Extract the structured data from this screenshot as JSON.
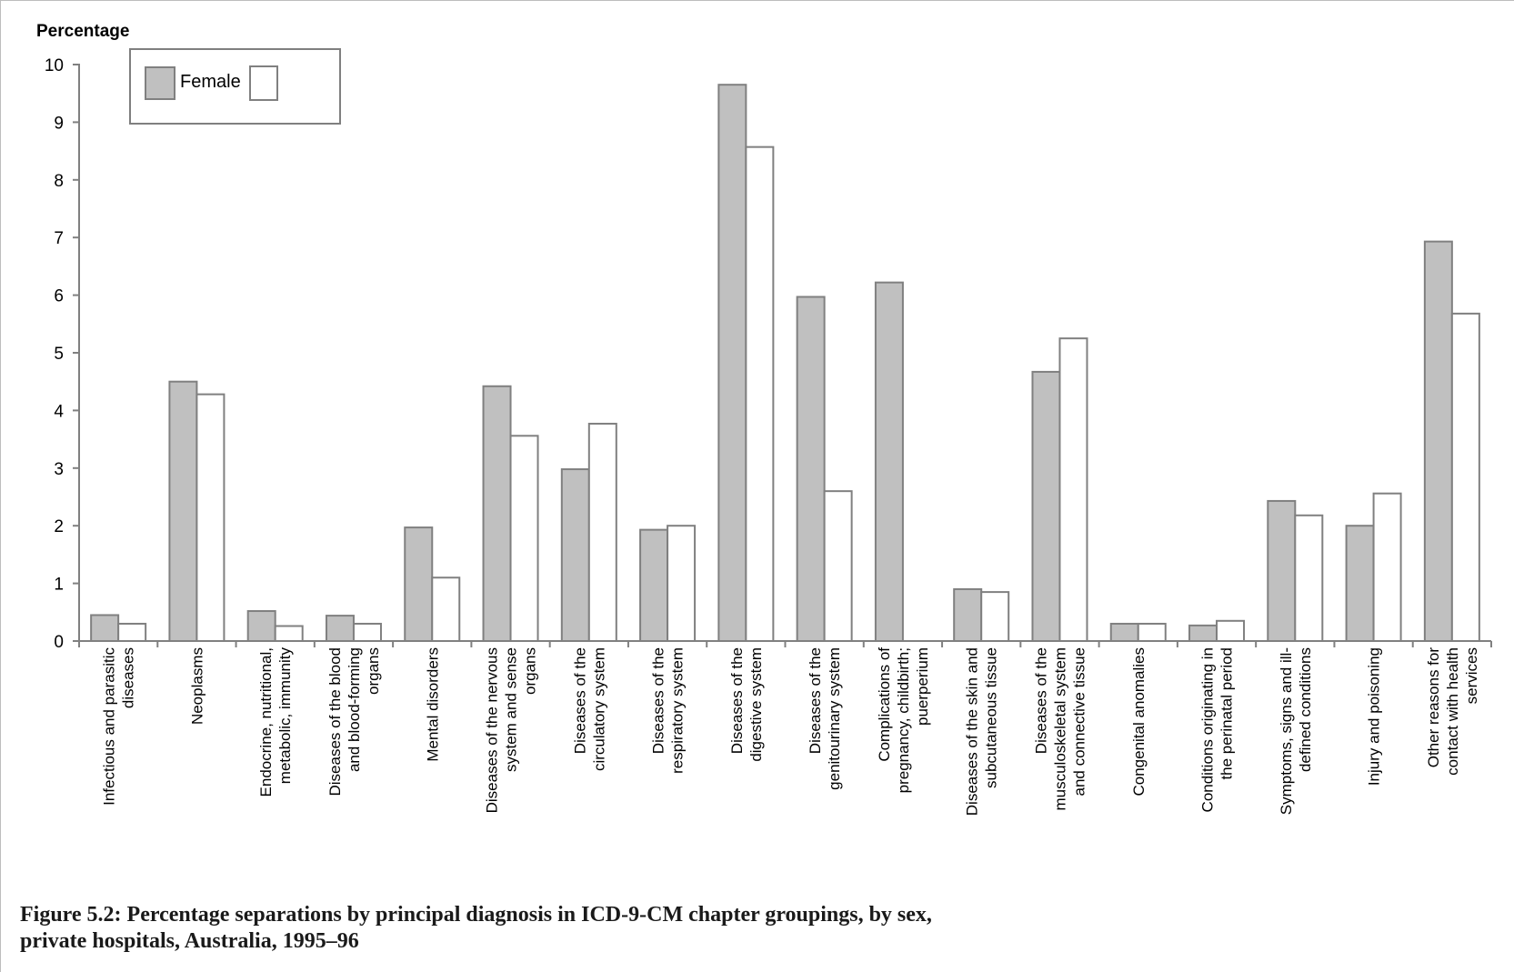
{
  "chart_data": {
    "type": "bar",
    "ylabel": "Percentage",
    "ylim": [
      0,
      10
    ],
    "yticks": [
      "0",
      "1",
      "2",
      "3",
      "4",
      "5",
      "6",
      "7",
      "8",
      "9",
      "10"
    ],
    "legend_position": "top-left",
    "grid": false,
    "categories": [
      [
        "Infectious and parasitic",
        "diseases"
      ],
      [
        "Neoplasms"
      ],
      [
        "Endocrine, nutritional,",
        "metabolic, immunity"
      ],
      [
        "Diseases of the blood",
        "and blood-forming",
        "organs"
      ],
      [
        "Mental disorders"
      ],
      [
        "Diseases of the nervous",
        "system and sense",
        "organs"
      ],
      [
        "Diseases of the",
        "circulatory system"
      ],
      [
        "Diseases of the",
        "respiratory system"
      ],
      [
        "Diseases of the",
        "digestive system"
      ],
      [
        "Diseases of the",
        "genitourinary system"
      ],
      [
        "Complications of",
        "pregnancy, childbirth;",
        "puerperium"
      ],
      [
        "Diseases of the skin and",
        "subcutaneous tissue"
      ],
      [
        "Diseases of the",
        "musculoskeletal system",
        "and connective tissue"
      ],
      [
        "Congenital anomalies"
      ],
      [
        "Conditions originating in",
        "the perinatal period"
      ],
      [
        "Symptoms, signs and ill-",
        "defined conditions"
      ],
      [
        "Injury and poisoning"
      ],
      [
        "Other reasons for",
        "contact with health",
        "services"
      ]
    ],
    "series": [
      {
        "name": "Female",
        "color": "#c0c0c0",
        "values": [
          0.45,
          4.5,
          0.52,
          0.44,
          1.97,
          4.42,
          2.98,
          1.93,
          9.65,
          5.97,
          6.22,
          0.9,
          4.67,
          0.3,
          0.27,
          2.43,
          2.0,
          6.93
        ]
      },
      {
        "name": "",
        "color": "#ffffff",
        "values": [
          0.3,
          4.28,
          0.26,
          0.3,
          1.1,
          3.56,
          3.77,
          2.0,
          8.57,
          2.6,
          0,
          0.85,
          5.25,
          0.3,
          0.35,
          2.18,
          2.56,
          5.68
        ]
      }
    ],
    "caption": [
      "Figure 5.2: Percentage separations by principal diagnosis in ICD-9-CM chapter groupings, by sex,",
      "private hospitals, Australia, 1995–96"
    ]
  }
}
